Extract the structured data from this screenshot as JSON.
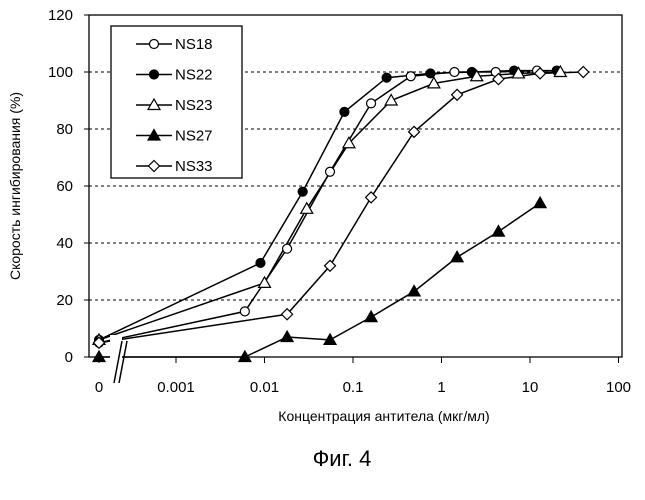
{
  "chart_data": {
    "type": "line",
    "xscale": "log",
    "x_break": true,
    "xlabel": "Концентрация антитела (мкг/мл)",
    "ylabel": "Скорость ингибирования (%)",
    "ylim": [
      0,
      120
    ],
    "xlim": [
      0.0001,
      100
    ],
    "yticks": [
      "0",
      "20",
      "40",
      "60",
      "80",
      "100",
      "120"
    ],
    "xticks": [
      "0",
      "0.001",
      "0.01",
      "0.1",
      "1",
      "10",
      "100"
    ],
    "grid": "horizontal-dashed",
    "legend_position": "top-left",
    "series": [
      {
        "name": "NS18",
        "marker": "circle-open",
        "x": [
          0,
          0.006,
          0.018,
          0.055,
          0.16,
          0.45,
          1.4,
          4.1,
          12
        ],
        "y": [
          5,
          16,
          38,
          65,
          89,
          98.5,
          100,
          100,
          100.5
        ]
      },
      {
        "name": "NS22",
        "marker": "circle-filled",
        "x": [
          0,
          0.009,
          0.027,
          0.08,
          0.24,
          0.75,
          2.2,
          6.6,
          20
        ],
        "y": [
          6,
          33,
          58,
          86,
          98,
          99.5,
          100,
          100.5,
          100.5
        ]
      },
      {
        "name": "NS23",
        "marker": "triangle-open",
        "x": [
          0,
          0.01,
          0.03,
          0.09,
          0.27,
          0.82,
          2.5,
          7.4,
          22
        ],
        "y": [
          6,
          26,
          52,
          75,
          90,
          96,
          98.5,
          99.5,
          100
        ]
      },
      {
        "name": "NS27",
        "marker": "triangle-filled",
        "x": [
          0,
          0.006,
          0.018,
          0.055,
          0.16,
          0.49,
          1.5,
          4.4,
          13
        ],
        "y": [
          0,
          0,
          7,
          6,
          14,
          23,
          35,
          44,
          54
        ]
      },
      {
        "name": "NS33",
        "marker": "diamond-open",
        "x": [
          0,
          0.018,
          0.055,
          0.16,
          0.49,
          1.5,
          4.4,
          13,
          40
        ],
        "y": [
          5,
          15,
          32,
          56,
          79,
          92,
          97.5,
          99.5,
          100
        ]
      }
    ]
  },
  "caption": "Фиг. 4"
}
